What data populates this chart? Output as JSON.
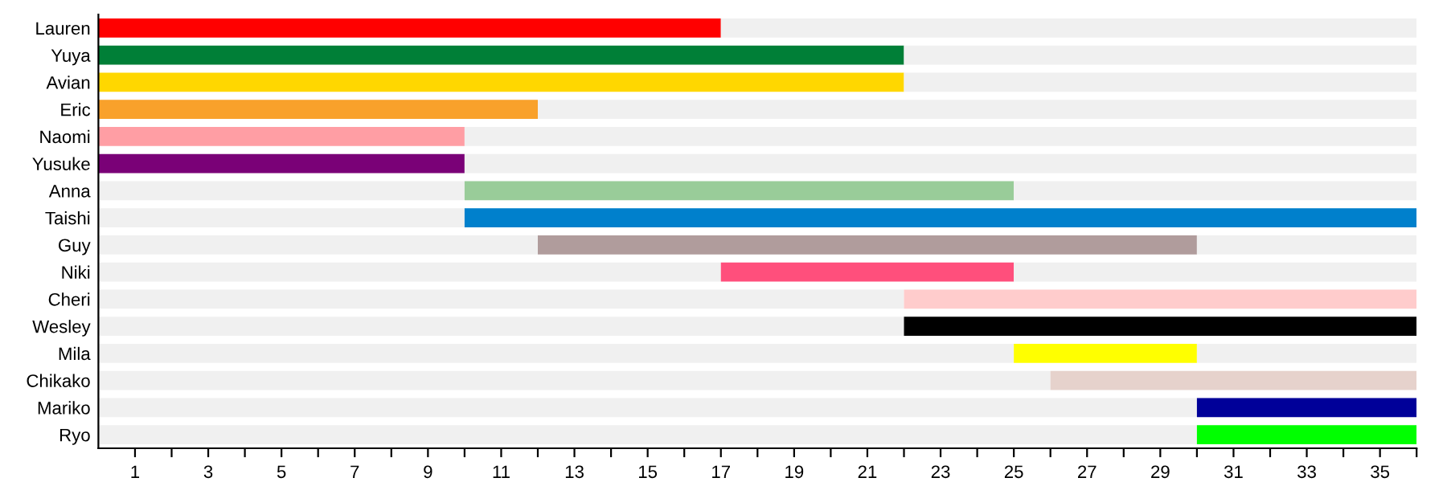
{
  "chart_data": {
    "type": "bar",
    "orientation": "horizontal",
    "categories": [
      "Lauren",
      "Yuya",
      "Avian",
      "Eric",
      "Naomi",
      "Yusuke",
      "Anna",
      "Taishi",
      "Guy",
      "Niki",
      "Cheri",
      "Wesley",
      "Mila",
      "Chikako",
      "Mariko",
      "Ryo"
    ],
    "series": [
      {
        "color": "#f0f0f0",
        "values": [
          null,
          null,
          null,
          null,
          null,
          null,
          10,
          10,
          12,
          17,
          22,
          22,
          25,
          26,
          30,
          30
        ]
      },
      {
        "values": [
          17,
          22,
          22,
          12,
          10,
          10,
          15,
          26,
          18,
          8,
          14,
          14,
          5,
          10,
          6,
          6
        ],
        "colors": [
          "#ff0000",
          "#007f37",
          "#ffd700",
          "#f9a12b",
          "#ff9ea4",
          "#7a0177",
          "#99cc99",
          "#0080cc",
          "#b09c9c",
          "#ff4f7c",
          "#ffcccc",
          "#000000",
          "#ffff00",
          "#e6d2cc",
          "#000099",
          "#00ff00"
        ]
      },
      {
        "color": "#f0f0f0",
        "values": [
          19,
          14,
          14,
          24,
          26,
          26,
          11,
          null,
          6,
          11,
          null,
          null,
          6,
          null,
          null,
          null
        ]
      }
    ],
    "stacked": true,
    "xlim": [
      0,
      36
    ],
    "xticks": [
      1,
      {
        "value": 2,
        "label": null
      },
      3,
      {
        "value": 4,
        "label": null
      },
      5,
      {
        "value": 6,
        "label": null
      },
      7,
      {
        "value": 8,
        "label": null
      },
      9,
      {
        "value": 10,
        "label": null
      },
      11,
      {
        "value": 12,
        "label": null
      },
      13,
      {
        "value": 14,
        "label": null
      },
      15,
      {
        "value": 16,
        "label": null
      },
      17,
      {
        "value": 18,
        "label": null
      },
      19,
      {
        "value": 20,
        "label": null
      },
      21,
      {
        "value": 22,
        "label": null
      },
      23,
      {
        "value": 24,
        "label": null
      },
      25,
      {
        "value": 26,
        "label": null
      },
      27,
      {
        "value": 28,
        "label": null
      },
      29,
      {
        "value": 30,
        "label": null
      },
      31,
      {
        "value": 32,
        "label": null
      },
      33,
      {
        "value": 34,
        "label": null
      },
      35,
      {
        "value": 36,
        "label": null
      }
    ],
    "grid": false,
    "legend": false
  }
}
